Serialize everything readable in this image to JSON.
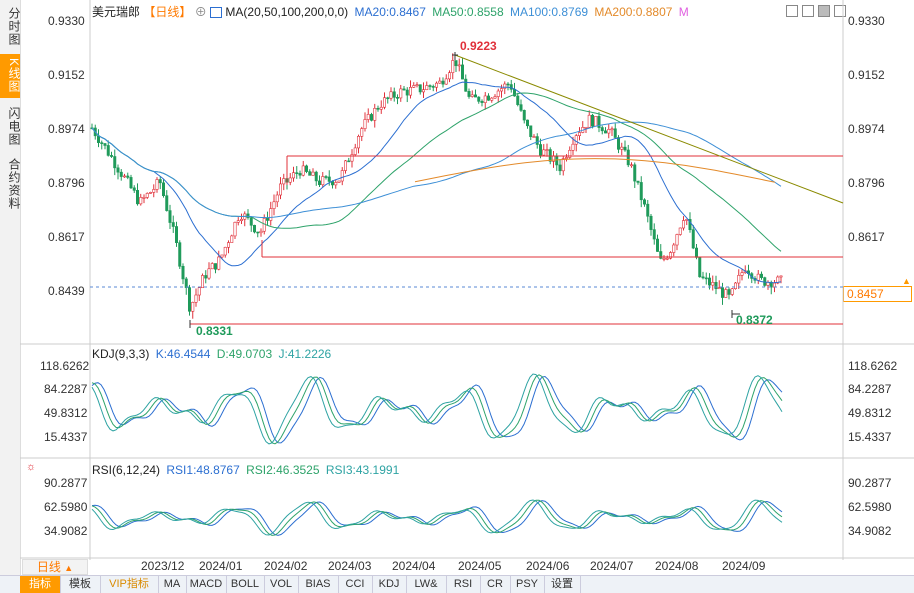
{
  "sidebar": [
    "分时图",
    "K线图",
    "闪电图",
    "合约资料"
  ],
  "header": {
    "symbol": "美元瑞郎",
    "period": "【日线】",
    "ma_label": "MA(20,50,100,200,0,0)",
    "ma20": "MA20:0.8467",
    "ma50": "MA50:0.8558",
    "ma100": "MA100:0.8769",
    "ma200": "MA200:0.8807",
    "m": "M"
  },
  "price_axis": [
    "0.9330",
    "0.9152",
    "0.8974",
    "0.8796",
    "0.8617",
    "0.8439"
  ],
  "current_price": "0.8457",
  "annotations": {
    "high": "0.9223",
    "low1": "0.8331",
    "low2": "0.8372"
  },
  "kdj": {
    "label": "KDJ(9,3,3)",
    "k": "K:46.4544",
    "d": "D:49.0703",
    "j": "J:41.2226",
    "axis": [
      "118.6262",
      "84.2287",
      "49.8312",
      "15.4337"
    ]
  },
  "rsi": {
    "label": "RSI(6,12,24)",
    "rsi1": "RSI1:48.8767",
    "rsi2": "RSI2:46.3525",
    "rsi3": "RSI3:43.1991",
    "axis": [
      "90.2877",
      "62.5980",
      "34.9082"
    ]
  },
  "dates": [
    "2023/12",
    "2024/01",
    "2024/02",
    "2024/03",
    "2024/04",
    "2024/05",
    "2024/06",
    "2024/07",
    "2024/08",
    "2024/09"
  ],
  "period_button": "日线",
  "bottom_tabs": [
    "指标",
    "模板",
    "VIP指标",
    "MA",
    "MACD",
    "BOLL",
    "VOL",
    "BIAS",
    "CCI",
    "KDJ",
    "LW&",
    "RSI",
    "CR",
    "PSY",
    "设置"
  ],
  "colors": {
    "up": "#e0303a",
    "down": "#1f9a5a",
    "ma20": "#2c6fd1",
    "ma50": "#2ea36a",
    "ma100": "#3d8fd6",
    "ma200": "#e38a2a",
    "accent": "#ff9a00"
  }
}
